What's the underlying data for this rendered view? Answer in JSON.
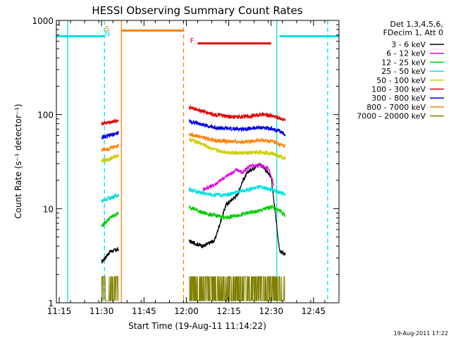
{
  "chart_data": {
    "type": "line",
    "title": "HESSI Observing Summary Count Rates",
    "xlabel": "Start Time (19-Aug-11 11:14:22)",
    "ylabel": "Count Rate (s⁻¹ detector⁻¹)",
    "yscale": "log",
    "ylim": [
      1,
      1000
    ],
    "xlim": [
      "11:14",
      "12:54"
    ],
    "x_ticks": [
      "11:15",
      "11:30",
      "11:45",
      "12:00",
      "12:15",
      "12:30",
      "12:45"
    ],
    "y_ticks": [
      "1",
      "10",
      "100",
      "1000"
    ],
    "grid": false,
    "legend_position": "right",
    "legend_header": [
      "Det 1,3,4,5,6,",
      "FDecim 1, Att 0"
    ],
    "footer": "19-Aug-2011 17:22",
    "data_intervals": [
      [
        "11:30",
        "11:36"
      ],
      [
        "12:01",
        "12:35"
      ]
    ],
    "series": [
      {
        "name": "3 - 6 keV",
        "color": "#000000",
        "x": [
          "11:30",
          "11:33",
          "11:36",
          "12:01",
          "12:06",
          "12:10",
          "12:14",
          "12:18",
          "12:20",
          "12:22",
          "12:26",
          "12:30",
          "12:33",
          "12:35"
        ],
        "y": [
          2.7,
          3.5,
          3.7,
          4.5,
          4.0,
          4.6,
          11,
          14,
          20,
          25,
          30,
          22,
          3.5,
          3.3
        ]
      },
      {
        "name": "6 - 12 keV",
        "color": "#e000e0",
        "x": [
          "12:06",
          "12:10",
          "12:14",
          "12:18",
          "12:20",
          "12:22",
          "12:26",
          "12:29",
          "12:31"
        ],
        "y": [
          16,
          18,
          22,
          26,
          24,
          28,
          29,
          27,
          18
        ]
      },
      {
        "name": "12 - 25 keV",
        "color": "#00cc00",
        "x": [
          "11:30",
          "11:33",
          "11:36",
          "12:01",
          "12:06",
          "12:10",
          "12:14",
          "12:18",
          "12:22",
          "12:26",
          "12:30",
          "12:33",
          "12:35"
        ],
        "y": [
          6.5,
          8.0,
          9.0,
          10.5,
          9.0,
          8.5,
          8.0,
          8.5,
          9.0,
          9.5,
          10.5,
          9.5,
          8.5
        ]
      },
      {
        "name": "25 - 50 keV",
        "color": "#00e0e0",
        "x": [
          "11:30",
          "11:33",
          "11:36",
          "12:01",
          "12:06",
          "12:10",
          "12:14",
          "12:18",
          "12:22",
          "12:26",
          "12:30",
          "12:33",
          "12:35"
        ],
        "y": [
          12,
          13,
          14,
          16,
          14.5,
          14,
          14,
          15,
          16,
          17,
          16,
          15,
          14
        ]
      },
      {
        "name": "50 - 100 keV",
        "color": "#cccc00",
        "x": [
          "11:30",
          "11:33",
          "11:36",
          "12:01",
          "12:06",
          "12:10",
          "12:14",
          "12:18",
          "12:22",
          "12:26",
          "12:30",
          "12:33",
          "12:35"
        ],
        "y": [
          32,
          34,
          37,
          55,
          48,
          42,
          40,
          39,
          39,
          40,
          39,
          36,
          34
        ]
      },
      {
        "name": "100 - 300 keV",
        "color": "#e00000",
        "x": [
          "11:30",
          "11:33",
          "11:36",
          "12:01",
          "12:06",
          "12:10",
          "12:14",
          "12:18",
          "12:22",
          "12:26",
          "12:30",
          "12:33",
          "12:35"
        ],
        "y": [
          80,
          83,
          87,
          120,
          108,
          100,
          96,
          94,
          96,
          100,
          98,
          92,
          88
        ]
      },
      {
        "name": "300 - 800 keV",
        "color": "#0000e0",
        "x": [
          "11:30",
          "11:33",
          "11:36",
          "12:01",
          "12:06",
          "12:10",
          "12:14",
          "12:18",
          "12:22",
          "12:26",
          "12:30",
          "12:33",
          "12:35"
        ],
        "y": [
          57,
          60,
          64,
          85,
          78,
          73,
          71,
          70,
          71,
          73,
          71,
          66,
          62
        ]
      },
      {
        "name": "800 - 7000 keV",
        "color": "#ff8000",
        "x": [
          "11:30",
          "11:33",
          "11:36",
          "12:01",
          "12:06",
          "12:10",
          "12:14",
          "12:18",
          "12:22",
          "12:26",
          "12:30",
          "12:33",
          "12:35"
        ],
        "y": [
          42,
          44,
          47,
          62,
          57,
          53,
          52,
          51,
          52,
          53,
          52,
          48,
          46
        ]
      },
      {
        "name": "7000 - 20000 keV",
        "color": "#808000",
        "x": [
          "11:30",
          "11:33",
          "11:36",
          "12:01",
          "12:06",
          "12:10",
          "12:14",
          "12:18",
          "12:22",
          "12:26",
          "12:30",
          "12:33",
          "12:35"
        ],
        "y": [
          1.8,
          1.9,
          1.9,
          1.9,
          1.8,
          1.9,
          1.9,
          1.9,
          1.9,
          1.9,
          1.9,
          1.9,
          1.9
        ]
      }
    ],
    "annotations": [
      {
        "label": "S",
        "color": "#ff8000",
        "x": "11:32"
      },
      {
        "label": "N",
        "color": "#00e0e0",
        "x": "11:32"
      },
      {
        "label": "F",
        "color": "#e00000"
      }
    ],
    "state_bars": [
      {
        "name": "saa",
        "color": "#ff8000",
        "x": [
          "11:37",
          "11:59"
        ],
        "y": 780,
        "style": "solid"
      },
      {
        "name": "night-1",
        "color": "#00e0e0",
        "x": [
          "11:14",
          "11:31"
        ],
        "y": 680,
        "style": "solid"
      },
      {
        "name": "night-2",
        "color": "#00e0e0",
        "x": [
          "12:33",
          "12:54"
        ],
        "y": 680,
        "style": "solid"
      },
      {
        "name": "flare",
        "color": "#e00000",
        "x": [
          "12:04",
          "12:30"
        ],
        "y": 570,
        "style": "solid"
      }
    ],
    "vlines": [
      {
        "color": "#00e0e0",
        "x": "11:18",
        "style": "solid"
      },
      {
        "color": "#00e0e0",
        "x": "11:31",
        "style": "dashed"
      },
      {
        "color": "#ff8000",
        "x": "11:37",
        "style": "solid"
      },
      {
        "color": "#ff8000",
        "x": "11:59",
        "style": "dashed"
      },
      {
        "color": "#00e0e0",
        "x": "12:32",
        "style": "solid"
      },
      {
        "color": "#00e0e0",
        "x": "12:50",
        "style": "dashed"
      }
    ]
  }
}
